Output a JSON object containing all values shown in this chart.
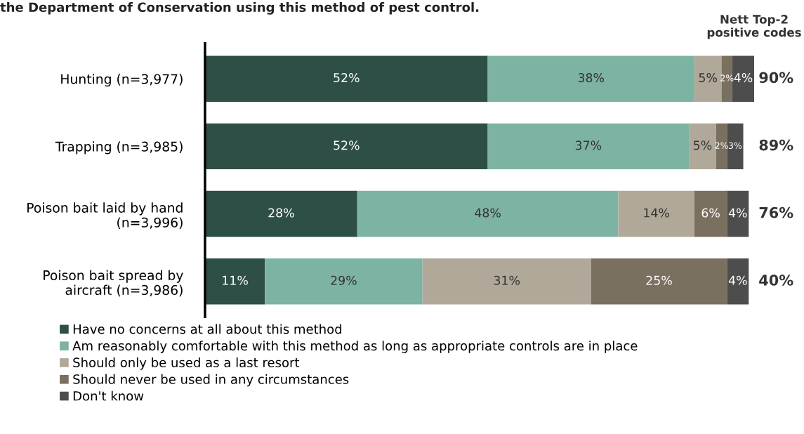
{
  "chart_data": {
    "type": "bar",
    "orientation": "horizontal",
    "stacked": true,
    "title": "the Department of Conservation using this method of pest control.",
    "categories": [
      "Hunting (n=3,977)",
      "Trapping (n=3,985)",
      "Poison bait laid by hand\n(n=3,996)",
      "Poison bait spread by\naircraft (n=3,986)"
    ],
    "series": [
      {
        "name": "Have no concerns at all about this method",
        "color": "#2e4f45",
        "values": [
          52,
          52,
          28,
          11
        ],
        "value_labels": [
          "52%",
          "52%",
          "28%",
          "11%"
        ]
      },
      {
        "name": "Am reasonably comfortable with this method as long as appropriate controls are in place",
        "color": "#7db3a3",
        "values": [
          38,
          37,
          48,
          29
        ],
        "value_labels": [
          "38%",
          "37%",
          "48%",
          "29%"
        ]
      },
      {
        "name": "Should only be used as a last resort",
        "color": "#b0a899",
        "values": [
          5,
          5,
          14,
          31
        ],
        "value_labels": [
          "5%",
          "5%",
          "14%",
          "31%"
        ]
      },
      {
        "name": "Should never be used in any circumstances",
        "color": "#7a705f",
        "values": [
          2,
          2,
          6,
          25
        ],
        "value_labels": [
          "2%",
          "2%",
          "6%",
          "25%"
        ]
      },
      {
        "name": "Don't know",
        "color": "#4d4d4d",
        "values": [
          4,
          3,
          4,
          4
        ],
        "value_labels": [
          "4%",
          "3%",
          "4%",
          "4%"
        ]
      }
    ],
    "annotations": [
      "Nett Top-2\npositive codes",
      "90%",
      "89%",
      "76%",
      "40%"
    ],
    "legend": "bottom",
    "grid": false
  }
}
